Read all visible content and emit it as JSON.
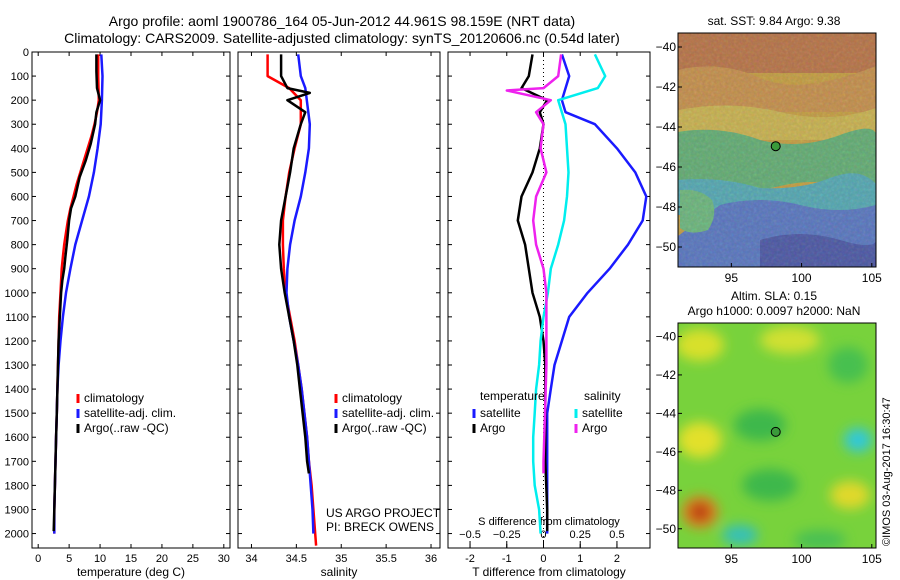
{
  "header": {
    "title_line1": "Argo profile: aoml 1900786_164 05-Jun-2012 44.961S 98.159E (NRT data)",
    "title_line2": "Climatology: CARS2009. Satellite-adjusted climatology: synTS_20120606.nc (0.54d later)"
  },
  "footer": {
    "project_line1": "US ARGO PROJECT",
    "project_line2": "PI: BRECK OWENS",
    "credit": "©IMOS 03-Aug-2017 16:30:47"
  },
  "colors": {
    "climatology": "#ff0000",
    "satellite": "#1a1aff",
    "argo": "#000000",
    "sal_satellite": "#00eeee",
    "sal_argo": "#ee22ee"
  },
  "chart_data": [
    {
      "type": "line",
      "xlabel": "temperature (deg C)",
      "ylabel": "",
      "xlim": [
        -1,
        31
      ],
      "ylim": [
        2060,
        0
      ],
      "xticks": [
        0,
        5,
        10,
        15,
        20,
        25,
        30
      ],
      "yticks": [
        0,
        100,
        200,
        300,
        400,
        500,
        600,
        700,
        800,
        900,
        1000,
        1100,
        1200,
        1300,
        1400,
        1500,
        1600,
        1700,
        1800,
        1900,
        2000
      ],
      "legend": {
        "placement": "center-left",
        "entries": [
          "climatology",
          "satellite-adj. clim.",
          "Argo(..raw -QC)"
        ]
      },
      "series": [
        {
          "name": "climatology",
          "color": "#ff0000",
          "points": [
            [
              9.7,
              10
            ],
            [
              9.7,
              100
            ],
            [
              9.8,
              200
            ],
            [
              9.5,
              250
            ],
            [
              9.1,
              300
            ],
            [
              8.6,
              350
            ],
            [
              8.0,
              400
            ],
            [
              7.4,
              450
            ],
            [
              6.8,
              500
            ],
            [
              6.2,
              550
            ],
            [
              5.7,
              600
            ],
            [
              5.2,
              650
            ],
            [
              4.8,
              700
            ],
            [
              4.5,
              750
            ],
            [
              4.2,
              800
            ],
            [
              4.0,
              850
            ],
            [
              3.8,
              900
            ],
            [
              3.6,
              1000
            ],
            [
              3.4,
              1100
            ],
            [
              3.3,
              1200
            ],
            [
              3.2,
              1300
            ],
            [
              3.1,
              1400
            ],
            [
              3.0,
              1500
            ],
            [
              2.9,
              1600
            ],
            [
              2.8,
              1700
            ],
            [
              2.7,
              1800
            ],
            [
              2.6,
              1900
            ],
            [
              2.6,
              2000
            ]
          ]
        },
        {
          "name": "satellite-adj. clim.",
          "color": "#1a1aff",
          "points": [
            [
              10.2,
              10
            ],
            [
              10.4,
              100
            ],
            [
              10.3,
              200
            ],
            [
              10.1,
              300
            ],
            [
              9.6,
              400
            ],
            [
              9.0,
              500
            ],
            [
              8.2,
              600
            ],
            [
              7.1,
              700
            ],
            [
              6.0,
              800
            ],
            [
              5.2,
              900
            ],
            [
              4.5,
              1000
            ],
            [
              4.0,
              1100
            ],
            [
              3.6,
              1200
            ],
            [
              3.3,
              1300
            ],
            [
              3.1,
              1400
            ],
            [
              3.0,
              1500
            ],
            [
              2.9,
              1600
            ],
            [
              2.8,
              1700
            ],
            [
              2.7,
              1800
            ],
            [
              2.6,
              1900
            ],
            [
              2.6,
              2000
            ]
          ]
        },
        {
          "name": "Argo(..raw -QC)",
          "color": "#000000",
          "points": [
            [
              9.4,
              10
            ],
            [
              9.4,
              80
            ],
            [
              9.5,
              150
            ],
            [
              10.0,
              200
            ],
            [
              9.4,
              250
            ],
            [
              9.2,
              300
            ],
            [
              8.5,
              380
            ],
            [
              7.7,
              450
            ],
            [
              6.7,
              520
            ],
            [
              6.0,
              600
            ],
            [
              5.3,
              650
            ],
            [
              5.0,
              700
            ],
            [
              4.7,
              780
            ],
            [
              4.4,
              850
            ],
            [
              4.2,
              900
            ],
            [
              3.9,
              950
            ],
            [
              3.7,
              1000
            ],
            [
              3.5,
              1100
            ],
            [
              3.3,
              1200
            ],
            [
              3.2,
              1300
            ],
            [
              3.1,
              1400
            ],
            [
              3.0,
              1500
            ],
            [
              2.9,
              1600
            ],
            [
              2.8,
              1700
            ],
            [
              2.7,
              1800
            ],
            [
              2.6,
              1900
            ],
            [
              2.5,
              1990
            ]
          ]
        }
      ]
    },
    {
      "type": "line",
      "xlabel": "salinity",
      "ylabel": "",
      "xlim": [
        33.85,
        36.1
      ],
      "ylim": [
        2060,
        0
      ],
      "xticks": [
        34,
        34.5,
        35,
        35.5,
        36
      ],
      "legend": {
        "placement": "center-right",
        "entries": [
          "climatology",
          "satellite-adj. clim.",
          "Argo(..raw -QC)"
        ]
      },
      "series": [
        {
          "name": "climatology",
          "color": "#ff0000",
          "points": [
            [
              34.18,
              10
            ],
            [
              34.18,
              100
            ],
            [
              34.42,
              150
            ],
            [
              34.55,
              200
            ],
            [
              34.55,
              300
            ],
            [
              34.48,
              400
            ],
            [
              34.42,
              500
            ],
            [
              34.38,
              600
            ],
            [
              34.35,
              700
            ],
            [
              34.35,
              800
            ],
            [
              34.36,
              900
            ],
            [
              34.38,
              1000
            ],
            [
              34.43,
              1100
            ],
            [
              34.48,
              1200
            ],
            [
              34.52,
              1300
            ],
            [
              34.56,
              1400
            ],
            [
              34.59,
              1500
            ],
            [
              34.62,
              1600
            ],
            [
              34.64,
              1700
            ],
            [
              34.67,
              1800
            ],
            [
              34.69,
              1900
            ],
            [
              34.71,
              2000
            ],
            [
              34.72,
              2050
            ]
          ]
        },
        {
          "name": "satellite-adj. clim.",
          "color": "#1a1aff",
          "points": [
            [
              34.52,
              10
            ],
            [
              34.55,
              100
            ],
            [
              34.6,
              150
            ],
            [
              34.65,
              300
            ],
            [
              34.64,
              400
            ],
            [
              34.6,
              500
            ],
            [
              34.55,
              600
            ],
            [
              34.48,
              700
            ],
            [
              34.43,
              800
            ],
            [
              34.4,
              900
            ],
            [
              34.39,
              1000
            ],
            [
              34.42,
              1100
            ],
            [
              34.47,
              1200
            ],
            [
              34.52,
              1300
            ],
            [
              34.56,
              1400
            ],
            [
              34.59,
              1500
            ],
            [
              34.62,
              1600
            ],
            [
              34.64,
              1700
            ],
            [
              34.66,
              1800
            ],
            [
              34.68,
              1900
            ],
            [
              34.69,
              2000
            ]
          ]
        },
        {
          "name": "Argo(..raw -QC)",
          "color": "#000000",
          "points": [
            [
              34.33,
              10
            ],
            [
              34.33,
              100
            ],
            [
              34.4,
              150
            ],
            [
              34.65,
              170
            ],
            [
              34.4,
              200
            ],
            [
              34.6,
              250
            ],
            [
              34.55,
              300
            ],
            [
              34.47,
              400
            ],
            [
              34.43,
              500
            ],
            [
              34.38,
              600
            ],
            [
              34.33,
              700
            ],
            [
              34.31,
              800
            ],
            [
              34.33,
              900
            ],
            [
              34.37,
              1000
            ],
            [
              34.42,
              1100
            ],
            [
              34.47,
              1200
            ],
            [
              34.51,
              1300
            ],
            [
              34.54,
              1400
            ],
            [
              34.57,
              1500
            ],
            [
              34.6,
              1600
            ],
            [
              34.62,
              1700
            ],
            [
              34.64,
              1750
            ]
          ]
        }
      ]
    },
    {
      "type": "line",
      "xlabel": "T difference from climatology",
      "ylabel": "",
      "xlim": [
        -2.6,
        2.9
      ],
      "ylim": [
        2060,
        0
      ],
      "xticks": [
        -2,
        -1,
        0,
        1,
        2
      ],
      "secondary_xlabel": "S difference from climatology",
      "secondary_xticks": [
        -0.5,
        -0.25,
        0,
        0.25,
        0.5
      ],
      "legend": {
        "placement": "lower-center",
        "groups": [
          {
            "title": "temperature",
            "entries": [
              "satellite",
              "Argo"
            ]
          },
          {
            "title": "salinity",
            "entries": [
              "satellite",
              "Argo"
            ]
          }
        ]
      },
      "series": [
        {
          "name": "satellite",
          "group": "temperature",
          "color": "#1a1aff",
          "points": [
            [
              0.5,
              10
            ],
            [
              0.7,
              100
            ],
            [
              0.5,
              200
            ],
            [
              0.6,
              250
            ],
            [
              1.4,
              300
            ],
            [
              2.0,
              400
            ],
            [
              2.5,
              500
            ],
            [
              2.8,
              600
            ],
            [
              2.7,
              700
            ],
            [
              2.3,
              800
            ],
            [
              1.8,
              900
            ],
            [
              1.2,
              1000
            ],
            [
              0.7,
              1100
            ],
            [
              0.5,
              1200
            ],
            [
              0.3,
              1300
            ],
            [
              0.2,
              1400
            ],
            [
              0.1,
              1500
            ],
            [
              0.1,
              1700
            ],
            [
              0.1,
              1900
            ],
            [
              0.1,
              2000
            ]
          ]
        },
        {
          "name": "Argo",
          "group": "temperature",
          "color": "#000000",
          "points": [
            [
              -0.3,
              10
            ],
            [
              -0.4,
              100
            ],
            [
              -0.6,
              150
            ],
            [
              0.1,
              200
            ],
            [
              -0.1,
              250
            ],
            [
              0.0,
              300
            ],
            [
              -0.1,
              400
            ],
            [
              -0.3,
              500
            ],
            [
              -0.6,
              600
            ],
            [
              -0.7,
              700
            ],
            [
              -0.5,
              800
            ],
            [
              -0.4,
              900
            ],
            [
              -0.3,
              1000
            ],
            [
              -0.1,
              1100
            ],
            [
              0.0,
              1200
            ],
            [
              0.05,
              1300
            ],
            [
              0.05,
              1500
            ],
            [
              0.05,
              1700
            ],
            [
              0.1,
              1900
            ],
            [
              0.1,
              1990
            ]
          ]
        },
        {
          "name": "satellite",
          "group": "salinity",
          "color": "#00eeee",
          "points": [
            [
              0.35,
              10
            ],
            [
              0.42,
              100
            ],
            [
              0.37,
              150
            ],
            [
              0.1,
              200
            ],
            [
              0.15,
              300
            ],
            [
              0.16,
              400
            ],
            [
              0.17,
              500
            ],
            [
              0.16,
              600
            ],
            [
              0.14,
              700
            ],
            [
              0.1,
              800
            ],
            [
              0.05,
              900
            ],
            [
              0.03,
              1000
            ],
            [
              0.0,
              1100
            ],
            [
              -0.02,
              1200
            ],
            [
              -0.03,
              1300
            ],
            [
              -0.05,
              1400
            ],
            [
              -0.06,
              1500
            ],
            [
              -0.07,
              1600
            ],
            [
              -0.07,
              1700
            ],
            [
              -0.06,
              1800
            ],
            [
              -0.03,
              1900
            ],
            [
              -0.02,
              2000
            ]
          ]
        },
        {
          "name": "Argo",
          "group": "salinity",
          "color": "#ee22ee",
          "points": [
            [
              0.12,
              10
            ],
            [
              0.1,
              100
            ],
            [
              0.0,
              150
            ],
            [
              -0.25,
              160
            ],
            [
              0.05,
              200
            ],
            [
              -0.05,
              250
            ],
            [
              0.0,
              300
            ],
            [
              -0.02,
              400
            ],
            [
              0.02,
              500
            ],
            [
              -0.05,
              600
            ],
            [
              -0.07,
              700
            ],
            [
              -0.05,
              800
            ],
            [
              0.0,
              900
            ],
            [
              0.02,
              1000
            ],
            [
              0.02,
              1100
            ],
            [
              0.02,
              1300
            ],
            [
              0.01,
              1500
            ],
            [
              0.0,
              1700
            ],
            [
              0.0,
              1750
            ]
          ]
        }
      ]
    },
    {
      "type": "heatmap",
      "title": "sat. SST: 9.84 Argo: 9.38",
      "xlim": [
        91.2,
        105.3
      ],
      "ylim": [
        -51,
        -39.3
      ],
      "xticks": [
        95,
        100,
        105
      ],
      "yticks": [
        -40,
        -42,
        -44,
        -46,
        -48,
        -50
      ],
      "marker": {
        "lon": 98.159,
        "lat": -44.961
      }
    },
    {
      "type": "heatmap",
      "title": "Altim. SLA: 0.15",
      "subtitle": "Argo h1000: 0.0097 h2000: NaN",
      "xlim": [
        91.2,
        105.3
      ],
      "ylim": [
        -51,
        -39.3
      ],
      "xticks": [
        95,
        100,
        105
      ],
      "yticks": [
        -40,
        -42,
        -44,
        -46,
        -48,
        -50
      ],
      "marker": {
        "lon": 98.159,
        "lat": -44.961
      }
    }
  ]
}
